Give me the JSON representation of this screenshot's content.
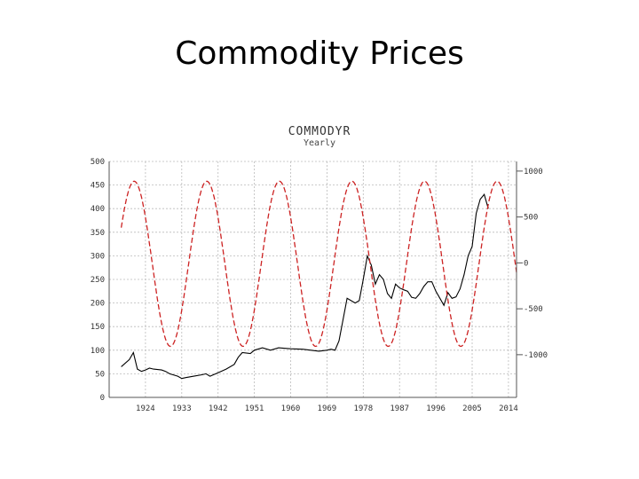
{
  "slide": {
    "title": "Commodity Prices"
  },
  "chart_data": {
    "type": "line",
    "title": "COMMODYR",
    "subtitle": "Yearly",
    "grid": true,
    "xlim": [
      1915,
      2016
    ],
    "x_ticks": [
      1924,
      1933,
      1942,
      1951,
      1960,
      1969,
      1978,
      1987,
      1996,
      2005,
      2014
    ],
    "x_tick_labels": [
      "1924",
      "1933",
      "1942",
      "1951",
      "1960",
      "1969",
      "1978",
      "1987",
      "1996",
      "2005",
      "2014"
    ],
    "ylim_left": [
      0,
      500
    ],
    "y_ticks_left": [
      0,
      50,
      100,
      150,
      200,
      250,
      300,
      350,
      400,
      450,
      500
    ],
    "y_tick_labels_left": [
      "0",
      "50",
      "100",
      "150",
      "200",
      "250",
      "300",
      "350",
      "400",
      "450",
      "500"
    ],
    "ylim_right": [
      -1465,
      1105
    ],
    "y_ticks_right": [
      -1000,
      -500,
      0,
      500,
      1000
    ],
    "y_tick_labels_right": [
      "-1000",
      "-500",
      "0",
      "500",
      "1000"
    ],
    "series": [
      {
        "axis": "left",
        "color": "#000000",
        "style": "solid",
        "x": [
          1918,
          1920,
          1921,
          1922,
          1923,
          1924,
          1925,
          1926,
          1928,
          1929,
          1930,
          1932,
          1933,
          1934,
          1936,
          1938,
          1939,
          1940,
          1942,
          1944,
          1946,
          1947,
          1948,
          1950,
          1951,
          1953,
          1955,
          1957,
          1960,
          1963,
          1965,
          1967,
          1969,
          1970,
          1971,
          1972,
          1974,
          1976,
          1977,
          1978,
          1979,
          1980,
          1981,
          1982,
          1983,
          1984,
          1985,
          1986,
          1987,
          1988,
          1989,
          1990,
          1991,
          1992,
          1993,
          1994,
          1995,
          1996,
          1997,
          1998,
          1999,
          2000,
          2001,
          2002,
          2003,
          2004,
          2005,
          2006,
          2007,
          2008,
          2009
        ],
        "values": [
          65,
          80,
          95,
          60,
          55,
          58,
          62,
          60,
          58,
          55,
          50,
          45,
          40,
          42,
          45,
          48,
          50,
          45,
          52,
          60,
          70,
          85,
          95,
          93,
          100,
          105,
          100,
          105,
          103,
          102,
          100,
          98,
          100,
          102,
          100,
          120,
          210,
          200,
          205,
          250,
          300,
          280,
          240,
          260,
          250,
          220,
          210,
          240,
          232,
          228,
          225,
          212,
          210,
          220,
          235,
          245,
          245,
          225,
          210,
          195,
          222,
          210,
          213,
          230,
          260,
          300,
          320,
          390,
          420,
          430,
          400
        ]
      },
      {
        "axis": "right",
        "color": "#cc2222",
        "style": "dashed",
        "cycle": {
          "amplitude": 900,
          "offset": -10,
          "period_years": 18,
          "peak_year": 1921.2,
          "x_start": 1918,
          "x_end": 2016
        }
      }
    ]
  }
}
